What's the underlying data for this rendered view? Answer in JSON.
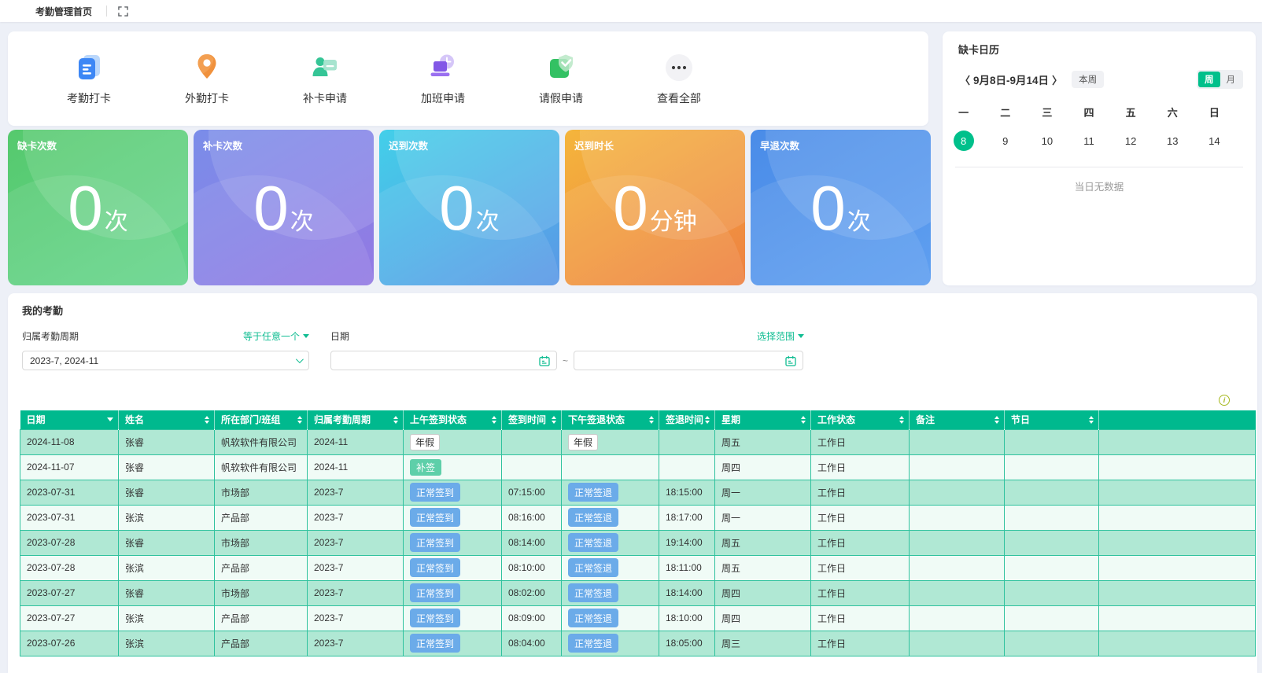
{
  "topbar": {
    "tab": "考勤管理首页"
  },
  "quick_actions": {
    "items": [
      {
        "id": "attendance-punch",
        "icon": "attendance-card-icon",
        "label": "考勤打卡"
      },
      {
        "id": "field-punch",
        "icon": "location-pin-icon",
        "label": "外勤打卡"
      },
      {
        "id": "makeup-apply",
        "icon": "person-card-icon",
        "label": "补卡申请"
      },
      {
        "id": "overtime-apply",
        "icon": "laptop-clock-icon",
        "label": "加班申请"
      },
      {
        "id": "leave-apply",
        "icon": "shield-check-icon",
        "label": "请假申请"
      },
      {
        "id": "view-all",
        "icon": "ellipsis-circle-icon",
        "label": "查看全部"
      }
    ]
  },
  "calendar": {
    "title": "缺卡日历",
    "prev": "〈",
    "next": "〉",
    "range": "9月8日-9月14日",
    "this_week": "本周",
    "week_label": "周",
    "month_label": "月",
    "weekdays": [
      "一",
      "二",
      "三",
      "四",
      "五",
      "六",
      "日"
    ],
    "dates": [
      "8",
      "9",
      "10",
      "11",
      "12",
      "13",
      "14"
    ],
    "selected_date": "8",
    "empty_text": "当日无数据"
  },
  "stats": {
    "cards": [
      {
        "label": "缺卡次数",
        "value": "0",
        "unit": "次",
        "from": "#55c96d",
        "to": "#67d58e"
      },
      {
        "label": "补卡次数",
        "value": "0",
        "unit": "次",
        "from": "#7a8de9",
        "to": "#9379e3"
      },
      {
        "label": "迟到次数",
        "value": "0",
        "unit": "次",
        "from": "#43cfe9",
        "to": "#5b97e6"
      },
      {
        "label": "迟到时长",
        "value": "0",
        "unit": "分钟",
        "from": "#f4b53c",
        "to": "#ee8142"
      },
      {
        "label": "早退次数",
        "value": "0",
        "unit": "次",
        "from": "#4a8ce8",
        "to": "#5f9ff0"
      }
    ]
  },
  "my_attendance": {
    "title": "我的考勤",
    "filters": {
      "period_label": "归属考勤周期",
      "period_op": "等于任意一个",
      "period_value": "2023-7, 2024-11",
      "date_label": "日期",
      "date_op": "选择范围",
      "tilde": "~"
    },
    "table": {
      "columns": [
        {
          "label": "日期",
          "icon": "filter"
        },
        {
          "label": "姓名",
          "icon": "sort"
        },
        {
          "label": "所在部门/班组",
          "icon": "sort"
        },
        {
          "label": "归属考勤周期",
          "icon": "sort"
        },
        {
          "label": "上午签到状态",
          "icon": "sort"
        },
        {
          "label": "签到时间",
          "icon": "sort"
        },
        {
          "label": "下午签退状态",
          "icon": "sort"
        },
        {
          "label": "签退时间",
          "icon": "sort"
        },
        {
          "label": "星期",
          "icon": "sort"
        },
        {
          "label": "工作状态",
          "icon": "sort"
        },
        {
          "label": "备注",
          "icon": "sort"
        },
        {
          "label": "节日",
          "icon": "sort"
        },
        {
          "label": "",
          "icon": "none"
        }
      ],
      "rows": [
        {
          "date": "2024-11-08",
          "name": "张睿",
          "dept": "帆软软件有限公司",
          "period": "2024-11",
          "am": {
            "text": "年假",
            "style": "plain"
          },
          "checkin": "",
          "pm": {
            "text": "年假",
            "style": "plain"
          },
          "checkout": "",
          "weekday": "周五",
          "work_status": "工作日",
          "remark": "",
          "holiday": ""
        },
        {
          "date": "2024-11-07",
          "name": "张睿",
          "dept": "帆软软件有限公司",
          "period": "2024-11",
          "am": {
            "text": "补签",
            "style": "mint"
          },
          "checkin": "",
          "pm": null,
          "checkout": "",
          "weekday": "周四",
          "work_status": "工作日",
          "remark": "",
          "holiday": ""
        },
        {
          "date": "2023-07-31",
          "name": "张睿",
          "dept": "市场部",
          "period": "2023-7",
          "am": {
            "text": "正常签到",
            "style": "blue"
          },
          "checkin": "07:15:00",
          "pm": {
            "text": "正常签退",
            "style": "blue"
          },
          "checkout": "18:15:00",
          "weekday": "周一",
          "work_status": "工作日",
          "remark": "",
          "holiday": ""
        },
        {
          "date": "2023-07-31",
          "name": "张滨",
          "dept": "产品部",
          "period": "2023-7",
          "am": {
            "text": "正常签到",
            "style": "blue"
          },
          "checkin": "08:16:00",
          "pm": {
            "text": "正常签退",
            "style": "blue"
          },
          "checkout": "18:17:00",
          "weekday": "周一",
          "work_status": "工作日",
          "remark": "",
          "holiday": ""
        },
        {
          "date": "2023-07-28",
          "name": "张睿",
          "dept": "市场部",
          "period": "2023-7",
          "am": {
            "text": "正常签到",
            "style": "blue"
          },
          "checkin": "08:14:00",
          "pm": {
            "text": "正常签退",
            "style": "blue"
          },
          "checkout": "19:14:00",
          "weekday": "周五",
          "work_status": "工作日",
          "remark": "",
          "holiday": ""
        },
        {
          "date": "2023-07-28",
          "name": "张滨",
          "dept": "产品部",
          "period": "2023-7",
          "am": {
            "text": "正常签到",
            "style": "blue"
          },
          "checkin": "08:10:00",
          "pm": {
            "text": "正常签退",
            "style": "blue"
          },
          "checkout": "18:11:00",
          "weekday": "周五",
          "work_status": "工作日",
          "remark": "",
          "holiday": ""
        },
        {
          "date": "2023-07-27",
          "name": "张睿",
          "dept": "市场部",
          "period": "2023-7",
          "am": {
            "text": "正常签到",
            "style": "blue"
          },
          "checkin": "08:02:00",
          "pm": {
            "text": "正常签退",
            "style": "blue"
          },
          "checkout": "18:14:00",
          "weekday": "周四",
          "work_status": "工作日",
          "remark": "",
          "holiday": ""
        },
        {
          "date": "2023-07-27",
          "name": "张滨",
          "dept": "产品部",
          "period": "2023-7",
          "am": {
            "text": "正常签到",
            "style": "blue"
          },
          "checkin": "08:09:00",
          "pm": {
            "text": "正常签退",
            "style": "blue"
          },
          "checkout": "18:10:00",
          "weekday": "周四",
          "work_status": "工作日",
          "remark": "",
          "holiday": ""
        },
        {
          "date": "2023-07-26",
          "name": "张滨",
          "dept": "产品部",
          "period": "2023-7",
          "am": {
            "text": "正常签到",
            "style": "blue"
          },
          "checkin": "08:04:00",
          "pm": {
            "text": "正常签退",
            "style": "blue"
          },
          "checkout": "18:05:00",
          "weekday": "周三",
          "work_status": "工作日",
          "remark": "",
          "holiday": ""
        }
      ]
    }
  },
  "colors": {
    "primary_green": "#00b98e",
    "calendar_selected": "#00c08b",
    "link_teal": "#10bd92",
    "table_row_odd": "#b0e8d4",
    "table_row_even": "#f0fbf6",
    "table_border": "#2fc29e",
    "badge_blue": "#6babe9",
    "badge_mint": "#5ecfa9"
  }
}
